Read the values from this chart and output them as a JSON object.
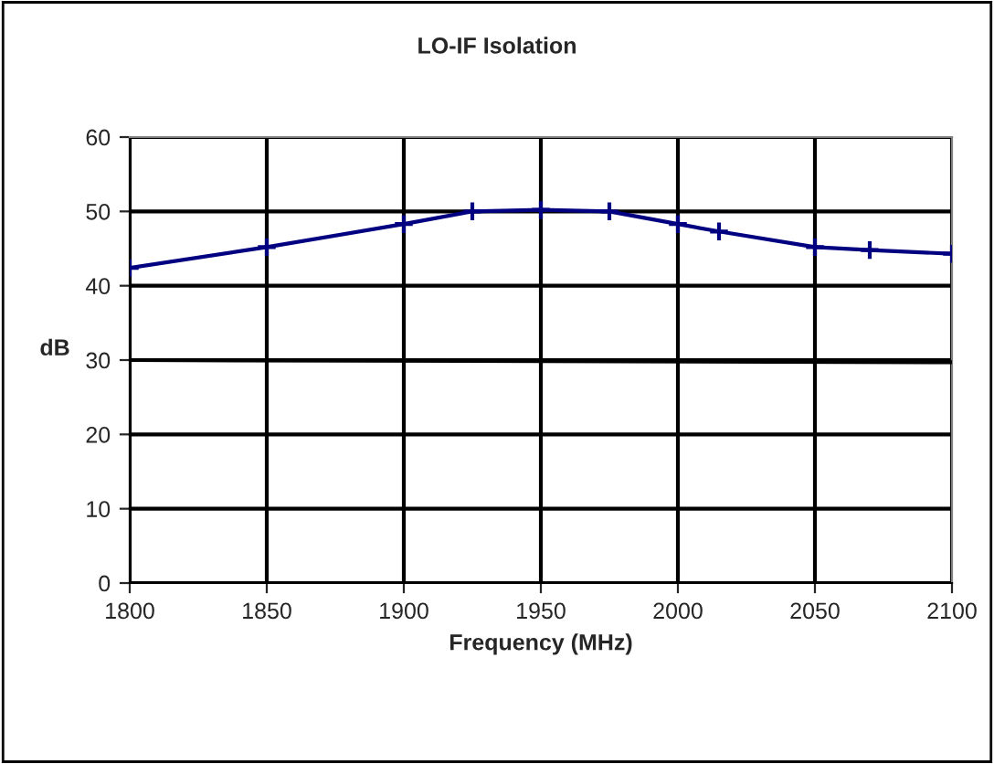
{
  "chart_data": {
    "type": "line",
    "title": "LO-IF Isolation",
    "xlabel": "Frequency (MHz)",
    "ylabel": "dB",
    "xlim": [
      1800,
      2100
    ],
    "xticks": [
      1800,
      1850,
      1900,
      1950,
      2000,
      2050,
      2100
    ],
    "ylim": [
      0,
      60
    ],
    "yticks": [
      0,
      10,
      20,
      30,
      40,
      50,
      60
    ],
    "grid": true,
    "legend": false,
    "series": [
      {
        "color": "#000080",
        "marker": "cross",
        "x": [
          1800,
          1850,
          1900,
          1925,
          1950,
          1975,
          2000,
          2015,
          2050,
          2070,
          2100
        ],
        "values": [
          42.4,
          45.2,
          48.3,
          50,
          50.2,
          50,
          48.3,
          47.3,
          45.2,
          44.8,
          44.3
        ]
      },
      {
        "color": "#000000",
        "marker": "none",
        "x": [
          1800,
          2100
        ],
        "values": [
          30,
          29.7
        ]
      }
    ]
  }
}
